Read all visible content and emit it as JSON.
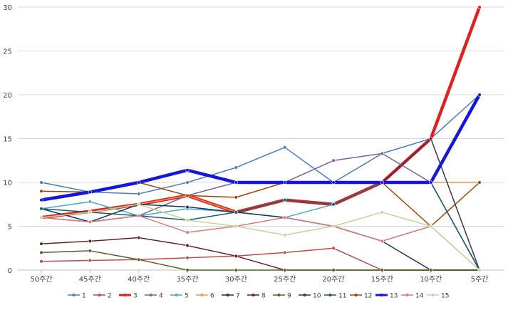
{
  "chart_data": {
    "type": "line",
    "categories": [
      "50주간",
      "45주간",
      "40주간",
      "35주간",
      "30주간",
      "25주간",
      "20주간",
      "15주간",
      "10주간",
      "5주간"
    ],
    "ylim": [
      0,
      30
    ],
    "yticks": [
      0,
      5,
      10,
      15,
      20,
      25,
      30
    ],
    "grid": "horizontal",
    "legend_position": "bottom",
    "series": [
      {
        "name": "1",
        "color": "#4A7EBB",
        "values": [
          10,
          8.9,
          8.7,
          10,
          11.7,
          14,
          10,
          13.3,
          15,
          20
        ]
      },
      {
        "name": "2",
        "color": "#BE4B48",
        "values": [
          1,
          1.1,
          1.2,
          1.4,
          1.6,
          2,
          2.5,
          0,
          0,
          0
        ]
      },
      {
        "name": "3",
        "color": "#E02020",
        "values": [
          6,
          6.7,
          7.5,
          8.5,
          6.6,
          8,
          7.5,
          10,
          15,
          30
        ]
      },
      {
        "name": "4",
        "color": "#7D60A0",
        "values": [
          6,
          5.5,
          6.2,
          8.5,
          10,
          10,
          12.5,
          13.3,
          10,
          0
        ]
      },
      {
        "name": "5",
        "color": "#46AAC5",
        "values": [
          7,
          7.8,
          6.2,
          7,
          6.6,
          6,
          7.5,
          10,
          10,
          0
        ]
      },
      {
        "name": "6",
        "color": "#F79646",
        "values": [
          6,
          6.6,
          7.5,
          8.5,
          6.6,
          8,
          7.5,
          10,
          10,
          10
        ]
      },
      {
        "name": "7",
        "color": "#17375E",
        "values": [
          7,
          5.5,
          7.5,
          7.2,
          6.6,
          6,
          5,
          3.3,
          0,
          0
        ]
      },
      {
        "name": "8",
        "color": "#632523",
        "values": [
          3,
          3.3,
          3.7,
          2.8,
          1.6,
          0,
          0,
          0,
          0,
          0
        ]
      },
      {
        "name": "9",
        "color": "#4F6228",
        "values": [
          2,
          2.2,
          1.2,
          0,
          0,
          0,
          0,
          0,
          0,
          0
        ]
      },
      {
        "name": "10",
        "color": "#3F3151",
        "values": [
          8,
          8.9,
          10,
          11.4,
          10,
          10,
          10,
          10,
          15,
          0
        ]
      },
      {
        "name": "11",
        "color": "#215968",
        "values": [
          7,
          6.6,
          6.2,
          5.7,
          6.6,
          8,
          7.5,
          10,
          10,
          0
        ]
      },
      {
        "name": "12",
        "color": "#984807",
        "values": [
          9,
          8.9,
          10,
          8.5,
          8.3,
          10,
          10,
          10,
          5,
          10
        ]
      },
      {
        "name": "13",
        "color": "#1515E0",
        "values": [
          8,
          8.9,
          10,
          11.4,
          10,
          10,
          10,
          10,
          10,
          20
        ]
      },
      {
        "name": "14",
        "color": "#D9797A",
        "values": [
          6,
          5.5,
          6.2,
          4.3,
          5,
          6,
          5,
          3.3,
          5,
          0
        ]
      },
      {
        "name": "15",
        "color": "#C3D69B",
        "values": [
          6,
          6.6,
          7.5,
          5.7,
          5,
          4,
          5,
          6.6,
          5,
          0
        ]
      }
    ]
  }
}
